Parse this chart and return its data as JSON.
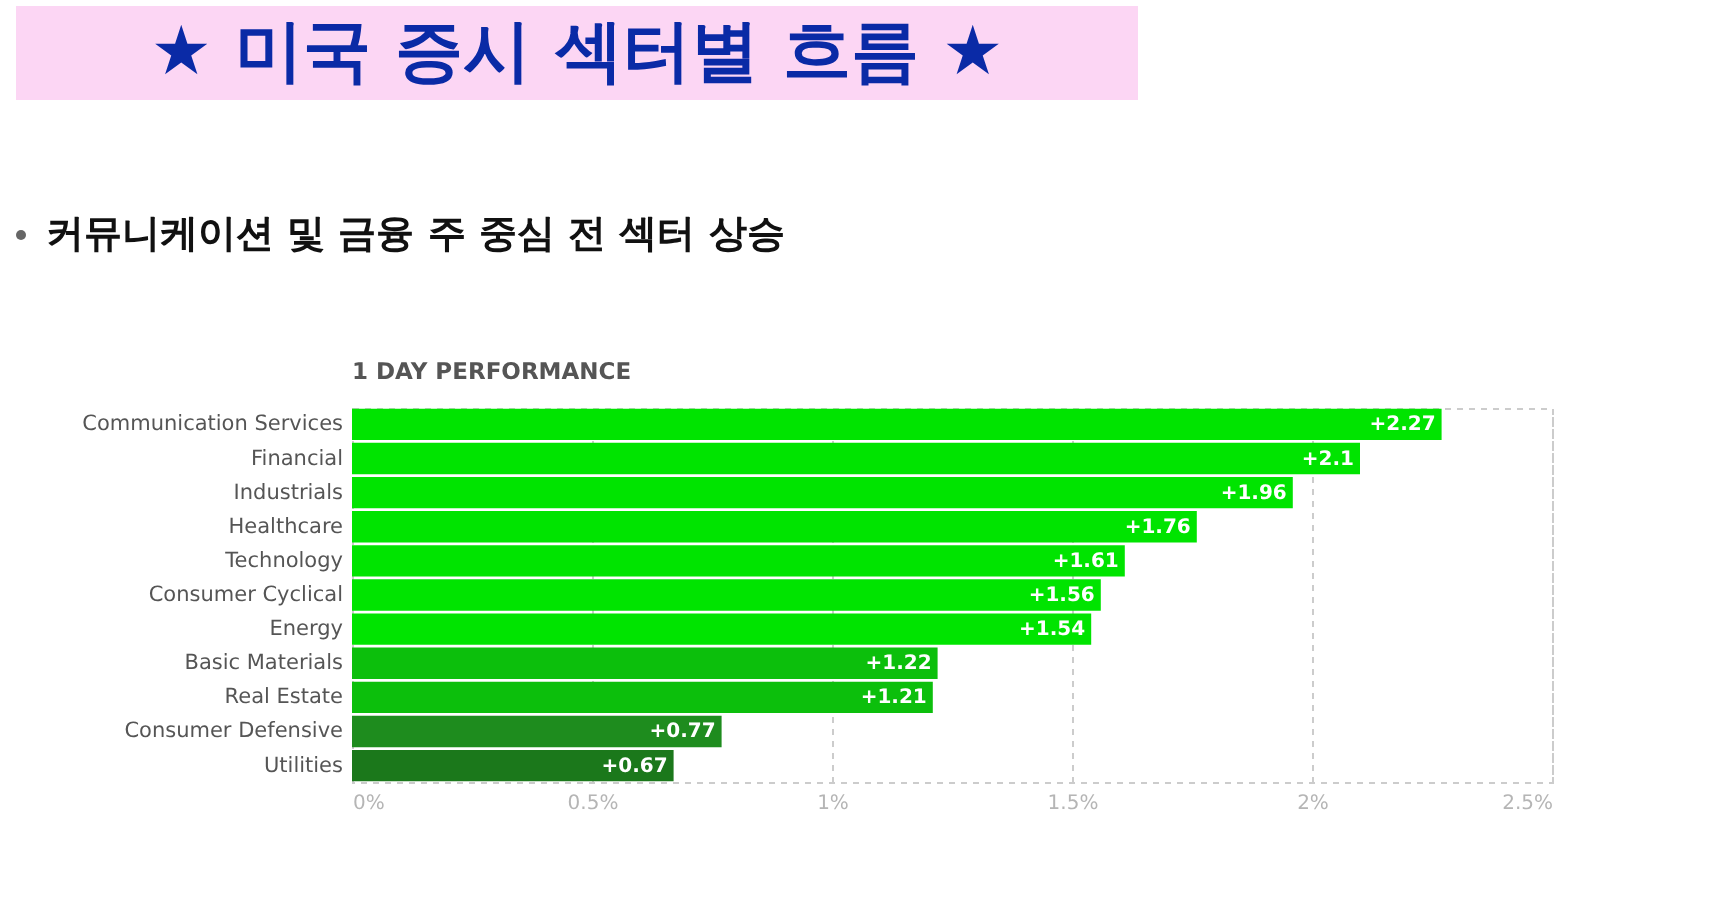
{
  "chart_data": {
    "type": "bar",
    "orientation": "horizontal",
    "title": "1 DAY PERFORMANCE",
    "subtitle": "커뮤니케이션 및 금융 주 중심 전 섹터 상승",
    "annotations": [
      "★ 미국 증시 섹터별 흐름 ★"
    ],
    "categories": [
      "Communication Services",
      "Financial",
      "Industrials",
      "Healthcare",
      "Technology",
      "Consumer Cyclical",
      "Energy",
      "Basic Materials",
      "Real Estate",
      "Consumer Defensive",
      "Utilities"
    ],
    "values": [
      2.27,
      2.1,
      1.96,
      1.76,
      1.61,
      1.56,
      1.54,
      1.22,
      1.21,
      0.77,
      0.67
    ],
    "value_labels": [
      "+2.27",
      "+2.1",
      "+1.96",
      "+1.76",
      "+1.61",
      "+1.56",
      "+1.54",
      "+1.22",
      "+1.21",
      "+0.77",
      "+0.67"
    ],
    "colors": [
      "#00e400",
      "#00e400",
      "#00e400",
      "#00e400",
      "#00e400",
      "#00e400",
      "#00e400",
      "#0cbf0c",
      "#0cbf0c",
      "#1e8c1e",
      "#1b781b"
    ],
    "xlim": [
      0,
      2.5
    ],
    "xticks": [
      {
        "value": 0,
        "label": "0%"
      },
      {
        "value": 0.5,
        "label": "0.5%"
      },
      {
        "value": 1,
        "label": "1%"
      },
      {
        "value": 1.5,
        "label": "1.5%"
      },
      {
        "value": 2,
        "label": "2%"
      },
      {
        "value": 2.5,
        "label": "2.5%"
      }
    ],
    "grid": "x",
    "legend": false
  }
}
